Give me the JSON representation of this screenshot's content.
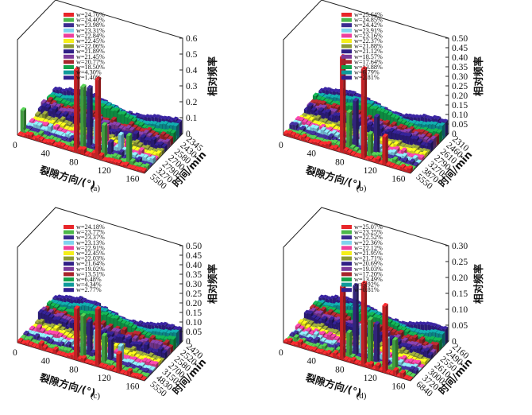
{
  "colors": [
    "#e8262a",
    "#4cb84a",
    "#3b2b8f",
    "#7fd3ee",
    "#ee3f9c",
    "#f4ee1a",
    "#8d9a36",
    "#2f1f86",
    "#7a3a9b",
    "#a8252c",
    "#12a24b",
    "#0f9a9a",
    "#33208f"
  ],
  "chart_data": [
    {
      "type": "bar",
      "subtype": "3d-bar",
      "caption": "(a)",
      "xlabel": "裂隙方向/(°)",
      "ylabel": "时间/min",
      "zlabel": "相对频率",
      "x_ticks": [
        "0",
        "40",
        "80",
        "120",
        "160"
      ],
      "y_ticks": [
        "2345",
        "2430",
        "2580",
        "2700",
        "2790",
        "3270",
        "5500"
      ],
      "z_ticks": [
        "0",
        "0.1",
        "0.2",
        "0.3",
        "0.4",
        "0.5",
        "0.6"
      ],
      "zlim": [
        0,
        0.6
      ],
      "legend": [
        "w=24.76%",
        "w=24.40%",
        "w=23.98%",
        "w=23.31%",
        "w=22.84%",
        "w=22.45%",
        "w=22.06%",
        "w=21.89%",
        "w=21.45%",
        "w=20.77%",
        "w=18.50%",
        "w=4.30%",
        "w=1.40%"
      ],
      "peaks": [
        {
          "series": "w=24.76%",
          "values": [
            0.52,
            0.5
          ]
        },
        {
          "series": "w=24.40%",
          "values": [
            0.4,
            0.2,
            0.18,
            0.14
          ]
        },
        {
          "series": "w=23.98%",
          "values": [
            0.38,
            0.08
          ]
        },
        {
          "series": "w=23.31%",
          "values": [
            0.16,
            0.12
          ]
        },
        {
          "series": "w=22.84%",
          "values": [
            0.12,
            0.07
          ]
        }
      ]
    },
    {
      "type": "bar",
      "subtype": "3d-bar",
      "caption": "(b)",
      "xlabel": "裂隙方向/(°)",
      "ylabel": "时间/min",
      "zlabel": "相对频率",
      "x_ticks": [
        "0",
        "40",
        "80",
        "120",
        "160"
      ],
      "y_ticks": [
        "2310",
        "2460",
        "2610",
        "2790",
        "3270",
        "3870",
        "5550"
      ],
      "z_ticks": [
        "0",
        "0.05",
        "0.10",
        "0.15",
        "0.20",
        "0.25",
        "0.30",
        "0.35",
        "0.40",
        "0.45",
        "0.50"
      ],
      "zlim": [
        0,
        0.5
      ],
      "legend": [
        "w=25.64%",
        "w=24.85%",
        "w=24.42%",
        "w=23.91%",
        "w=23.16%",
        "w=22.37%",
        "w=21.88%",
        "w=21.12%",
        "w=18.57%",
        "w=17.64%",
        "w=13.88%",
        "w=6.79%",
        "w=2.81%"
      ],
      "peaks": [
        {
          "series": "w=25.64%",
          "values": [
            0.5,
            0.47,
            0.15
          ]
        },
        {
          "series": "w=24.85%",
          "values": [
            0.2,
            0.12
          ]
        },
        {
          "series": "w=24.42%",
          "values": [
            0.25,
            0.2
          ]
        },
        {
          "series": "w=23.91%",
          "values": [
            0.1
          ]
        }
      ]
    },
    {
      "type": "bar",
      "subtype": "3d-bar",
      "caption": "(c)",
      "xlabel": "裂隙方向/(°)",
      "ylabel": "时间/min",
      "zlabel": "相对频率",
      "x_ticks": [
        "0",
        "40",
        "80",
        "120",
        "160"
      ],
      "y_ticks": [
        "2420",
        "2520",
        "2580",
        "2700",
        "3150",
        "4830",
        "5550"
      ],
      "z_ticks": [
        "0",
        "0.05",
        "0.10",
        "0.15",
        "0.20",
        "0.25",
        "0.30",
        "0.35",
        "0.40",
        "0.45",
        "0.50"
      ],
      "zlim": [
        0,
        0.5
      ],
      "legend": [
        "w=24.18%",
        "w=23.77%",
        "w=23.37%",
        "w=23.13%",
        "w=22.91%",
        "w=22.45%",
        "w=22.03%",
        "w=21.64%",
        "w=19.02%",
        "w=13.51%",
        "w=6.48%",
        "w=4.34%",
        "w=2.77%"
      ],
      "peaks": [
        {
          "series": "w=24.18%",
          "values": [
            0.27,
            0.3,
            0.1
          ]
        },
        {
          "series": "w=23.77%",
          "values": [
            0.22,
            0.15
          ]
        },
        {
          "series": "w=23.37%",
          "values": [
            0.18,
            0.12
          ]
        },
        {
          "series": "w=23.13%",
          "values": [
            0.12,
            0.08
          ]
        }
      ]
    },
    {
      "type": "bar",
      "subtype": "3d-bar",
      "caption": "(d)",
      "xlabel": "裂隙方向/(°)",
      "ylabel": "时间/min",
      "zlabel": "相对频率",
      "x_ticks": [
        "0",
        "40",
        "80",
        "120",
        "160"
      ],
      "y_ticks": [
        "2160",
        "2490",
        "2550",
        "2610",
        "3000",
        "3720",
        "6840"
      ],
      "z_ticks": [
        "0",
        "0.05",
        "0.10",
        "0.15",
        "0.20",
        "0.25",
        "0.30"
      ],
      "zlim": [
        0,
        0.3
      ],
      "legend": [
        "w=25.07%",
        "w=23.25%",
        "w=22.52%",
        "w=22.36%",
        "w=22.12%",
        "w=21.95%",
        "w=21.71%",
        "w=20.69%",
        "w=19.03%",
        "w=17.20%",
        "w=13.49%",
        "w=5.92%",
        "w=0.81%"
      ],
      "peaks": [
        {
          "series": "w=25.07%",
          "values": [
            0.23,
            0.26,
            0.21
          ]
        },
        {
          "series": "w=23.25%",
          "values": [
            0.08,
            0.14,
            0.1
          ]
        },
        {
          "series": "w=22.52%",
          "values": [
            0.22,
            0.12
          ]
        },
        {
          "series": "w=22.36%",
          "values": [
            0.09,
            0.07
          ]
        }
      ]
    }
  ]
}
